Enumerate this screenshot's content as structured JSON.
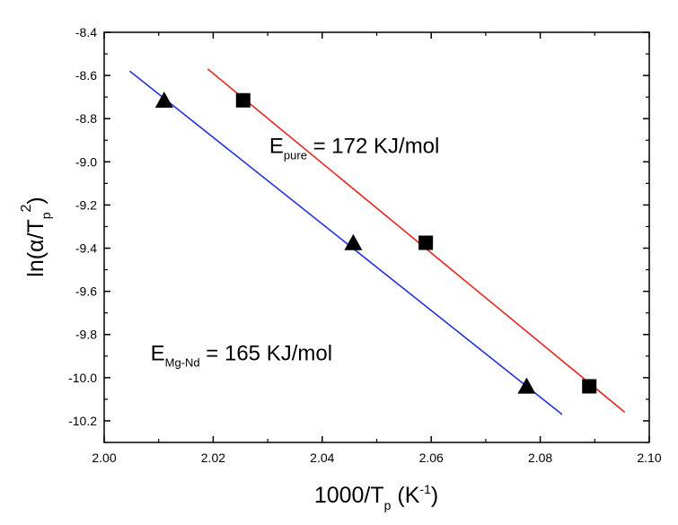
{
  "chart_data": {
    "type": "scatter",
    "xlabel": {
      "main": "1000/T",
      "sub": "p",
      "tail": " (K",
      "sup": "-1",
      "end": ")"
    },
    "ylabel": {
      "main": "ln(α/T",
      "sub": "p",
      "sup": "2",
      "end": ")"
    },
    "xlim": [
      2.0,
      2.1
    ],
    "ylim": [
      -10.3,
      -8.4
    ],
    "x_ticks": [
      2.0,
      2.02,
      2.04,
      2.06,
      2.08,
      2.1
    ],
    "x_tick_labels": [
      "2.00",
      "2.02",
      "2.04",
      "2.06",
      "2.08",
      "2.10"
    ],
    "y_ticks": [
      -8.4,
      -8.6,
      -8.8,
      -9.0,
      -9.2,
      -9.4,
      -9.6,
      -9.8,
      -10.0,
      -10.2
    ],
    "y_tick_labels": [
      "-8.4",
      "-8.6",
      "-8.8",
      "-9.0",
      "-9.2",
      "-9.4",
      "-9.6",
      "-9.8",
      "-10.0",
      "-10.2"
    ],
    "grid": false,
    "series": [
      {
        "marker": "square",
        "color": "#000000",
        "points": [
          {
            "x": 2.0255,
            "y": -8.715
          },
          {
            "x": 2.059,
            "y": -9.375
          },
          {
            "x": 2.089,
            "y": -10.04
          }
        ],
        "fit_color": "#e8251e",
        "fit": [
          {
            "x": 2.019,
            "y": -8.57
          },
          {
            "x": 2.0955,
            "y": -10.16
          }
        ]
      },
      {
        "marker": "triangle",
        "color": "#000000",
        "points": [
          {
            "x": 2.011,
            "y": -8.72
          },
          {
            "x": 2.0457,
            "y": -9.38
          },
          {
            "x": 2.0775,
            "y": -10.045
          }
        ],
        "fit_color": "#2233dd",
        "fit": [
          {
            "x": 2.0047,
            "y": -8.58
          },
          {
            "x": 2.084,
            "y": -10.17
          }
        ]
      }
    ],
    "annotations": [
      {
        "main": "E",
        "sub": "pure",
        "rest": " = 172 KJ/mol",
        "x": 2.0303,
        "y": -8.96
      },
      {
        "main": "E",
        "sub": "Mg-Nd",
        "rest": " = 165 KJ/mol",
        "x": 2.0085,
        "y": -9.92
      }
    ]
  }
}
